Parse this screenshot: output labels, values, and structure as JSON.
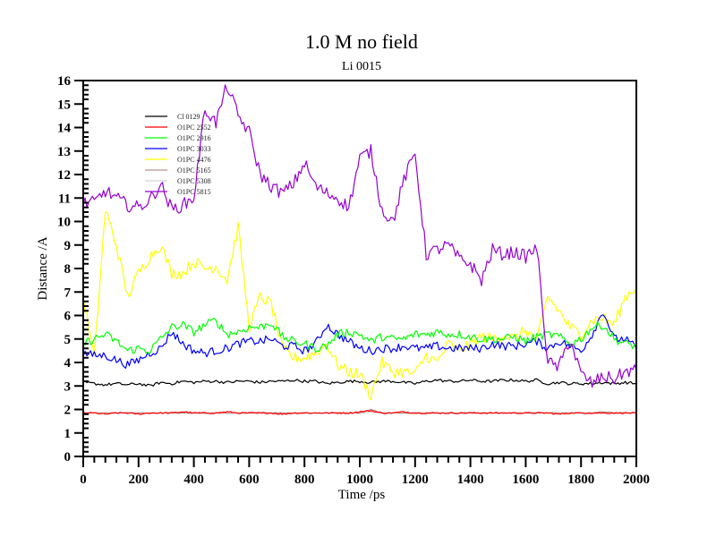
{
  "chart_data": {
    "type": "line",
    "title": "1.0 M no field",
    "subtitle": "Li 0015",
    "xlabel": "Time /ps",
    "ylabel": "Distance /A",
    "xlim": [
      0,
      2000
    ],
    "ylim": [
      0,
      16
    ],
    "x_major_step": 200,
    "x_minor_step": 40,
    "y_major_step": 1,
    "y_minor_step": 0.2,
    "x_tick_labels": [
      "0",
      "200",
      "400",
      "600",
      "800",
      "1000",
      "1200",
      "1400",
      "1600",
      "1800",
      "2000"
    ],
    "y_tick_labels": [
      "0",
      "1",
      "2",
      "3",
      "4",
      "5",
      "6",
      "7",
      "8",
      "9",
      "10",
      "11",
      "12",
      "13",
      "14",
      "15",
      "16"
    ],
    "grid": false,
    "legend_position": "top-left",
    "x": [
      0,
      40,
      80,
      120,
      160,
      200,
      240,
      280,
      320,
      360,
      400,
      440,
      480,
      520,
      560,
      600,
      640,
      680,
      720,
      760,
      800,
      840,
      880,
      920,
      960,
      1000,
      1040,
      1080,
      1120,
      1160,
      1200,
      1240,
      1280,
      1320,
      1360,
      1400,
      1440,
      1480,
      1520,
      1560,
      1600,
      1640,
      1680,
      1720,
      1760,
      1800,
      1840,
      1880,
      1920,
      1960,
      2000
    ],
    "series": [
      {
        "name": "Cl 0129",
        "color": "#000000",
        "values": [
          3.15,
          3.1,
          3.05,
          3.1,
          3.05,
          3.1,
          3.0,
          3.15,
          3.1,
          3.2,
          3.15,
          3.2,
          3.2,
          3.15,
          3.2,
          3.2,
          3.15,
          3.2,
          3.2,
          3.25,
          3.2,
          3.2,
          3.1,
          3.15,
          3.2,
          3.2,
          3.15,
          3.2,
          3.2,
          3.15,
          3.1,
          3.2,
          3.25,
          3.2,
          3.2,
          3.25,
          3.2,
          3.2,
          3.25,
          3.25,
          3.2,
          3.25,
          3.1,
          3.15,
          3.1,
          3.1,
          3.1,
          3.15,
          3.1,
          3.15,
          3.1
        ]
      },
      {
        "name": "O1PC 2552",
        "color": "#ff0000",
        "values": [
          1.85,
          1.85,
          1.8,
          1.85,
          1.85,
          1.8,
          1.85,
          1.85,
          1.85,
          1.9,
          1.85,
          1.85,
          1.85,
          1.9,
          1.85,
          1.85,
          1.85,
          1.85,
          1.8,
          1.85,
          1.85,
          1.85,
          1.85,
          1.85,
          1.85,
          1.9,
          1.95,
          1.85,
          1.85,
          1.9,
          1.85,
          1.85,
          1.85,
          1.85,
          1.85,
          1.85,
          1.85,
          1.85,
          1.85,
          1.85,
          1.85,
          1.85,
          1.85,
          1.8,
          1.85,
          1.85,
          1.85,
          1.85,
          1.85,
          1.85,
          1.85
        ]
      },
      {
        "name": "O1PC 2916",
        "color": "#00ff00",
        "values": [
          4.8,
          5.0,
          5.2,
          4.9,
          4.5,
          4.6,
          4.5,
          5.0,
          5.5,
          5.6,
          5.3,
          5.6,
          5.8,
          5.2,
          5.3,
          5.5,
          5.5,
          5.7,
          5.1,
          4.9,
          4.8,
          4.6,
          4.7,
          5.2,
          5.3,
          5.2,
          4.9,
          5.1,
          5.0,
          5.0,
          5.2,
          5.2,
          5.3,
          5.2,
          5.2,
          5.1,
          5.0,
          5.0,
          5.0,
          5.1,
          4.9,
          5.1,
          5.2,
          5.1,
          4.8,
          5.0,
          5.5,
          5.6,
          5.0,
          4.8,
          4.7
        ]
      },
      {
        "name": "O1PC 3033",
        "color": "#0000ff",
        "values": [
          4.4,
          4.3,
          4.3,
          4.1,
          3.9,
          4.1,
          4.4,
          4.6,
          5.3,
          4.8,
          4.5,
          4.4,
          4.5,
          4.6,
          4.8,
          4.9,
          4.9,
          5.0,
          4.7,
          4.7,
          4.5,
          4.8,
          5.6,
          5.2,
          4.9,
          4.6,
          4.5,
          4.6,
          4.6,
          4.7,
          4.6,
          4.6,
          4.7,
          4.6,
          4.6,
          4.6,
          4.6,
          4.8,
          4.7,
          4.7,
          4.8,
          4.9,
          4.6,
          4.9,
          4.7,
          4.5,
          5.2,
          6.2,
          5.0,
          5.0,
          4.6
        ]
      },
      {
        "name": "O1PC 4476",
        "color": "#ffff00",
        "values": [
          6.8,
          4.2,
          10.5,
          9.0,
          6.8,
          7.8,
          8.5,
          9.0,
          7.8,
          7.8,
          8.3,
          8.0,
          8.1,
          7.5,
          9.8,
          5.5,
          6.8,
          6.5,
          4.6,
          4.2,
          4.2,
          4.4,
          4.8,
          3.9,
          3.6,
          3.5,
          2.6,
          4.0,
          3.6,
          3.6,
          3.5,
          4.3,
          4.0,
          4.8,
          4.5,
          4.8,
          5.1,
          5.0,
          5.2,
          5.0,
          5.4,
          4.9,
          6.8,
          6.2,
          5.5,
          5.2,
          5.8,
          5.9,
          5.6,
          6.8,
          7.2
        ]
      },
      {
        "name": "O1PC 5165",
        "color": "#bc8f8f",
        "values": [
          1.85,
          1.85,
          1.85,
          1.85,
          1.85,
          1.85,
          1.85,
          1.85,
          1.85,
          1.85,
          1.85,
          1.85,
          1.85,
          1.85,
          1.85,
          1.85,
          1.85,
          1.85,
          1.85,
          1.85,
          1.85,
          1.85,
          1.85,
          1.85,
          1.85,
          1.85,
          2.0,
          1.85,
          1.85,
          1.85,
          1.85,
          1.85,
          1.85,
          1.85,
          1.85,
          1.85,
          1.85,
          1.85,
          1.85,
          1.85,
          1.85,
          1.85,
          1.85,
          1.85,
          1.85,
          1.85,
          1.85,
          1.9,
          1.85,
          1.85,
          1.85
        ]
      },
      {
        "name": "O1PC 5308",
        "color": "#d3d3d3",
        "values": [
          1.85,
          1.85,
          1.85,
          1.85,
          1.85,
          1.85,
          1.85,
          1.85,
          1.85,
          1.85,
          1.85,
          1.85,
          1.85,
          1.85,
          1.85,
          1.85,
          1.85,
          1.85,
          1.85,
          1.85,
          1.85,
          1.85,
          1.85,
          1.85,
          1.85,
          1.85,
          1.9,
          1.85,
          1.85,
          1.85,
          1.85,
          1.85,
          1.85,
          1.85,
          1.85,
          1.85,
          1.85,
          1.85,
          1.85,
          1.85,
          1.85,
          1.85,
          1.85,
          1.85,
          1.85,
          1.85,
          1.85,
          1.9,
          1.85,
          1.85,
          1.85
        ]
      },
      {
        "name": "O1PC 5815",
        "color": "#9400d3",
        "values": [
          10.8,
          10.8,
          11.3,
          11.0,
          10.7,
          10.6,
          10.9,
          11.6,
          10.5,
          10.7,
          11.0,
          14.8,
          14.2,
          15.8,
          14.5,
          13.8,
          12.0,
          11.5,
          11.2,
          11.6,
          12.5,
          11.5,
          11.2,
          11.0,
          10.6,
          12.7,
          13.0,
          10.5,
          10.0,
          11.8,
          12.9,
          8.6,
          8.8,
          9.0,
          8.4,
          8.2,
          7.5,
          8.8,
          8.6,
          8.7,
          8.5,
          8.9,
          4.0,
          3.8,
          5.0,
          3.5,
          3.1,
          3.4,
          3.3,
          3.6,
          3.7
        ]
      }
    ]
  }
}
